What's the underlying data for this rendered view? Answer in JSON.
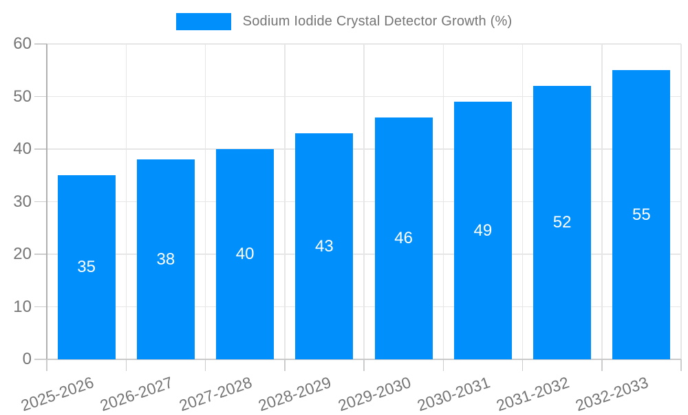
{
  "chart_data": {
    "type": "bar",
    "title": "Sodium Iodide Crystal Detector Growth (%)",
    "categories": [
      "2025-2026",
      "2026-2027",
      "2027-2028",
      "2028-2029",
      "2029-2030",
      "2030-2031",
      "2031-2032",
      "2032-2033"
    ],
    "values": [
      35,
      38,
      40,
      43,
      46,
      49,
      52,
      55
    ],
    "xlabel": "",
    "ylabel": "",
    "ylim": [
      0,
      60
    ],
    "yticks": [
      0,
      10,
      20,
      30,
      40,
      50,
      60
    ],
    "grid": true,
    "legend_position": "top-center",
    "bar_color": "#0190FB",
    "bar_label_color": "#ffffff",
    "axis_text_color": "#757575",
    "gridline_color": "#e6e6e6"
  }
}
